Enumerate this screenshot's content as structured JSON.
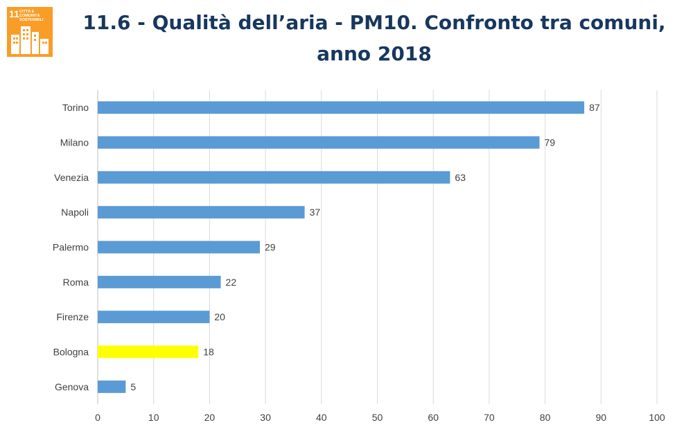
{
  "badge": {
    "number": "11",
    "text": "Città e comunità sostenibili",
    "color": "#F99D26"
  },
  "title": {
    "line1": "11.6 - Qualità dell’aria - PM10. Confronto tra comuni,",
    "line2": "anno 2018"
  },
  "chart_data": {
    "type": "bar",
    "orientation": "horizontal",
    "categories": [
      "Torino",
      "Milano",
      "Venezia",
      "Napoli",
      "Palermo",
      "Roma",
      "Firenze",
      "Bologna",
      "Genova"
    ],
    "values": [
      87,
      79,
      63,
      37,
      29,
      22,
      20,
      18,
      5
    ],
    "colors": [
      "#5B9BD5",
      "#5B9BD5",
      "#5B9BD5",
      "#5B9BD5",
      "#5B9BD5",
      "#5B9BD5",
      "#5B9BD5",
      "#FFFF00",
      "#5B9BD5"
    ],
    "highlight": "Bologna",
    "xlim": [
      0,
      100
    ],
    "xticks": [
      0,
      10,
      20,
      30,
      40,
      50,
      60,
      70,
      80,
      90,
      100
    ],
    "grid": "vertical",
    "data_labels": true
  }
}
